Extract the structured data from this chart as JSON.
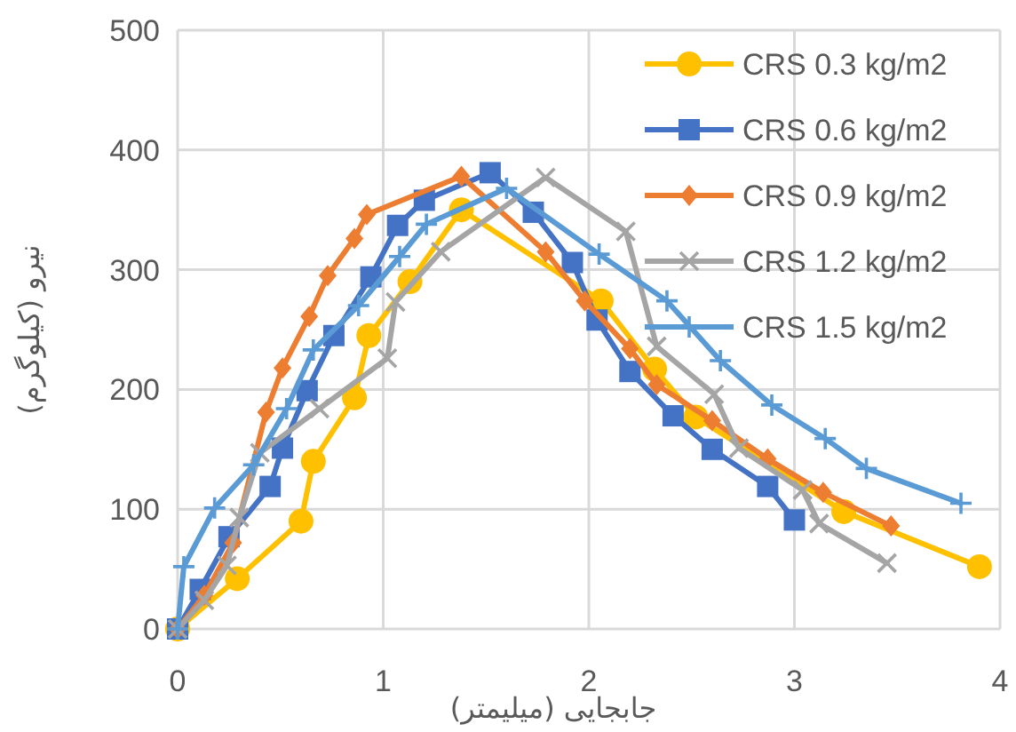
{
  "chart_data": {
    "type": "line",
    "xlabel": "جابجایی (میلیمتر)",
    "ylabel": "نیرو (کیلوگرم)",
    "xlim": [
      0,
      4
    ],
    "xticks": [
      0,
      1,
      2,
      3,
      4
    ],
    "ylim": [
      0,
      500
    ],
    "yticks": [
      0,
      100,
      200,
      300,
      400,
      500
    ],
    "grid": true,
    "legend": "top right",
    "line_style": "solid",
    "series": [
      {
        "name": "CRS 0.3 kg/m2",
        "color": "#ffc000",
        "marker": "circle",
        "x": [
          0,
          0.29,
          0.6,
          0.66,
          0.86,
          0.93,
          1.13,
          1.38,
          2.06,
          2.32,
          2.52,
          3.24,
          3.9
        ],
        "values": [
          0,
          42,
          90,
          140,
          193,
          245,
          290,
          350,
          274,
          217,
          177,
          98,
          52
        ]
      },
      {
        "name": "CRS 0.6 kg/m2",
        "color": "#4472c4",
        "marker": "square",
        "x": [
          0,
          0.11,
          0.25,
          0.45,
          0.51,
          0.63,
          0.76,
          0.94,
          1.07,
          1.2,
          1.52,
          1.73,
          1.92,
          2.04,
          2.2,
          2.41,
          2.6,
          2.87,
          3.0
        ],
        "values": [
          0,
          33,
          77,
          119,
          151,
          199,
          245,
          294,
          337,
          358,
          381,
          348,
          306,
          258,
          215,
          178,
          150,
          119,
          91
        ]
      },
      {
        "name": "CRS 0.9 kg/m2",
        "color": "#ed7d31",
        "marker": "diamond",
        "x": [
          0,
          0.13,
          0.27,
          0.43,
          0.51,
          0.64,
          0.73,
          0.86,
          0.92,
          1.38,
          1.79,
          1.98,
          2.2,
          2.33,
          2.6,
          2.87,
          3.14,
          3.47
        ],
        "values": [
          0,
          28,
          72,
          181,
          218,
          261,
          295,
          326,
          346,
          378,
          315,
          274,
          234,
          204,
          174,
          142,
          114,
          86
        ]
      },
      {
        "name": "CRS 1.2 kg/m2",
        "color": "#a5a5a5",
        "marker": "cross",
        "x": [
          0,
          0.13,
          0.24,
          0.3,
          0.4,
          0.69,
          1.02,
          1.06,
          1.28,
          1.79,
          2.18,
          2.33,
          2.61,
          2.73,
          3.04,
          3.12,
          3.45
        ],
        "values": [
          0,
          24,
          53,
          93,
          147,
          184,
          226,
          273,
          315,
          377,
          332,
          236,
          196,
          151,
          116,
          88,
          55
        ]
      },
      {
        "name": "CRS 1.5 kg/m2",
        "color": "#5b9bd5",
        "marker": "plus",
        "x": [
          0,
          0.03,
          0.18,
          0.37,
          0.53,
          0.66,
          0.88,
          1.08,
          1.21,
          1.6,
          2.05,
          2.38,
          2.64,
          2.89,
          3.15,
          3.35,
          3.81
        ],
        "values": [
          0,
          52,
          101,
          137,
          184,
          233,
          270,
          311,
          338,
          368,
          313,
          274,
          224,
          187,
          159,
          134,
          105
        ]
      }
    ]
  }
}
